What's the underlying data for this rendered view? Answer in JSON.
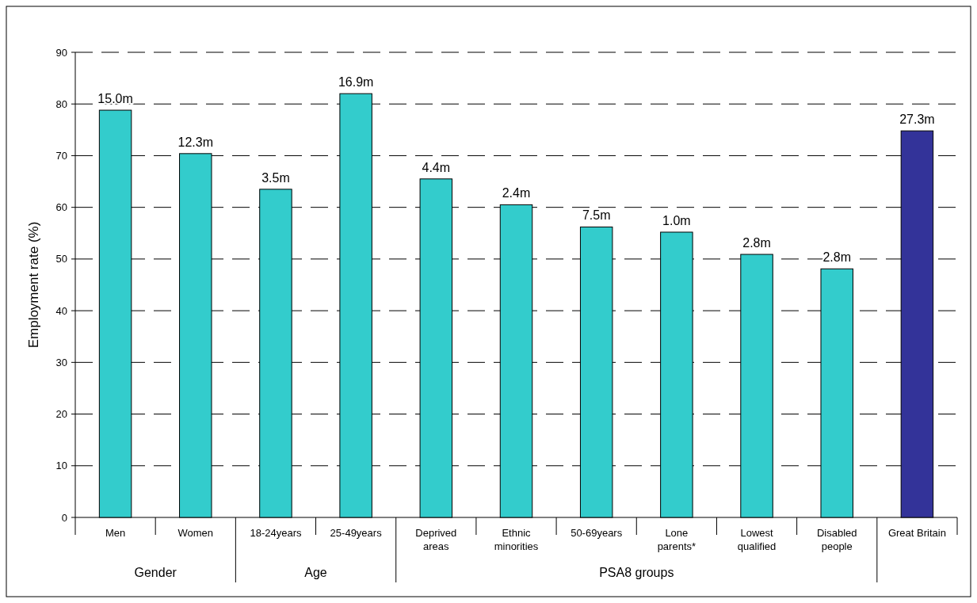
{
  "chart_data": {
    "type": "bar",
    "ylabel": "Employment rate (%)",
    "categories": [
      "Men",
      "Women",
      "18-24years",
      "25-49years",
      "Deprived\nareas",
      "Ethnic\nminorities",
      "50-69years",
      "Lone\nparents*",
      "Lowest\nqualified",
      "Disabled\npeople",
      "Great Britain"
    ],
    "values": [
      78.8,
      70.4,
      63.5,
      82.0,
      65.5,
      60.5,
      56.2,
      55.2,
      50.9,
      48.1,
      74.8
    ],
    "colors": [
      "#33cccc",
      "#33cccc",
      "#33cccc",
      "#33cccc",
      "#33cccc",
      "#33cccc",
      "#33cccc",
      "#33cccc",
      "#33cccc",
      "#33cccc",
      "#333399"
    ],
    "annotations": [
      "Gender",
      "Age",
      "PSA8 groups",
      {
        "text": "15.0m",
        "x": "Men",
        "y": 78.8
      },
      {
        "text": "12.3m",
        "x": "Women",
        "y": 70.4
      },
      {
        "text": "3.5m",
        "x": "18-24years",
        "y": 63.5
      },
      {
        "text": "16.9m",
        "x": "25-49years",
        "y": 82.0
      },
      {
        "text": "4.4m",
        "x": "Deprived\nareas",
        "y": 65.5
      },
      {
        "text": "2.4m",
        "x": "Ethnic\nminorities",
        "y": 60.5
      },
      {
        "text": "7.5m",
        "x": "50-69years",
        "y": 56.2
      },
      {
        "text": "1.0m",
        "x": "Lone\nparents*",
        "y": 55.2
      },
      {
        "text": "2.8m",
        "x": "Lowest\nqualified",
        "y": 50.9
      },
      {
        "text": "2.8m",
        "x": "Disabled\npeople",
        "y": 48.1
      },
      {
        "text": "27.3m",
        "x": "Great Britain",
        "y": 74.8
      }
    ],
    "ylim": [
      0,
      90
    ],
    "yticks": [
      0,
      10,
      20,
      30,
      40,
      50,
      60,
      70,
      80,
      90
    ],
    "grid": "y"
  }
}
